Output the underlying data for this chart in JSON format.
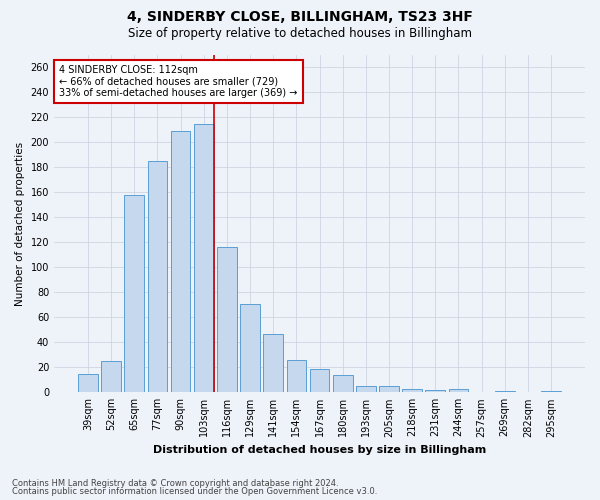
{
  "title": "4, SINDERBY CLOSE, BILLINGHAM, TS23 3HF",
  "subtitle": "Size of property relative to detached houses in Billingham",
  "xlabel": "Distribution of detached houses by size in Billingham",
  "ylabel": "Number of detached properties",
  "categories": [
    "39sqm",
    "52sqm",
    "65sqm",
    "77sqm",
    "90sqm",
    "103sqm",
    "116sqm",
    "129sqm",
    "141sqm",
    "154sqm",
    "167sqm",
    "180sqm",
    "193sqm",
    "205sqm",
    "218sqm",
    "231sqm",
    "244sqm",
    "257sqm",
    "269sqm",
    "282sqm",
    "295sqm"
  ],
  "values": [
    15,
    25,
    158,
    185,
    209,
    215,
    116,
    71,
    47,
    26,
    19,
    14,
    5,
    5,
    3,
    2,
    3,
    0,
    1,
    0,
    1
  ],
  "bar_color": "#c5d8ed",
  "bar_edge_color": "#5a9fd4",
  "marker_line_color": "#cc0000",
  "annotation_text": "4 SINDERBY CLOSE: 112sqm\n← 66% of detached houses are smaller (729)\n33% of semi-detached houses are larger (369) →",
  "annotation_box_color": "#ffffff",
  "annotation_box_edge_color": "#cc0000",
  "ylim": [
    0,
    270
  ],
  "yticks": [
    0,
    20,
    40,
    60,
    80,
    100,
    120,
    140,
    160,
    180,
    200,
    220,
    240,
    260
  ],
  "footer_line1": "Contains HM Land Registry data © Crown copyright and database right 2024.",
  "footer_line2": "Contains public sector information licensed under the Open Government Licence v3.0.",
  "background_color": "#eef2f9",
  "plot_bg_color": "#eef2f9",
  "title_fontsize": 10,
  "subtitle_fontsize": 8.5,
  "xlabel_fontsize": 8,
  "ylabel_fontsize": 7.5,
  "tick_fontsize": 7,
  "annotation_fontsize": 7,
  "footer_fontsize": 6
}
